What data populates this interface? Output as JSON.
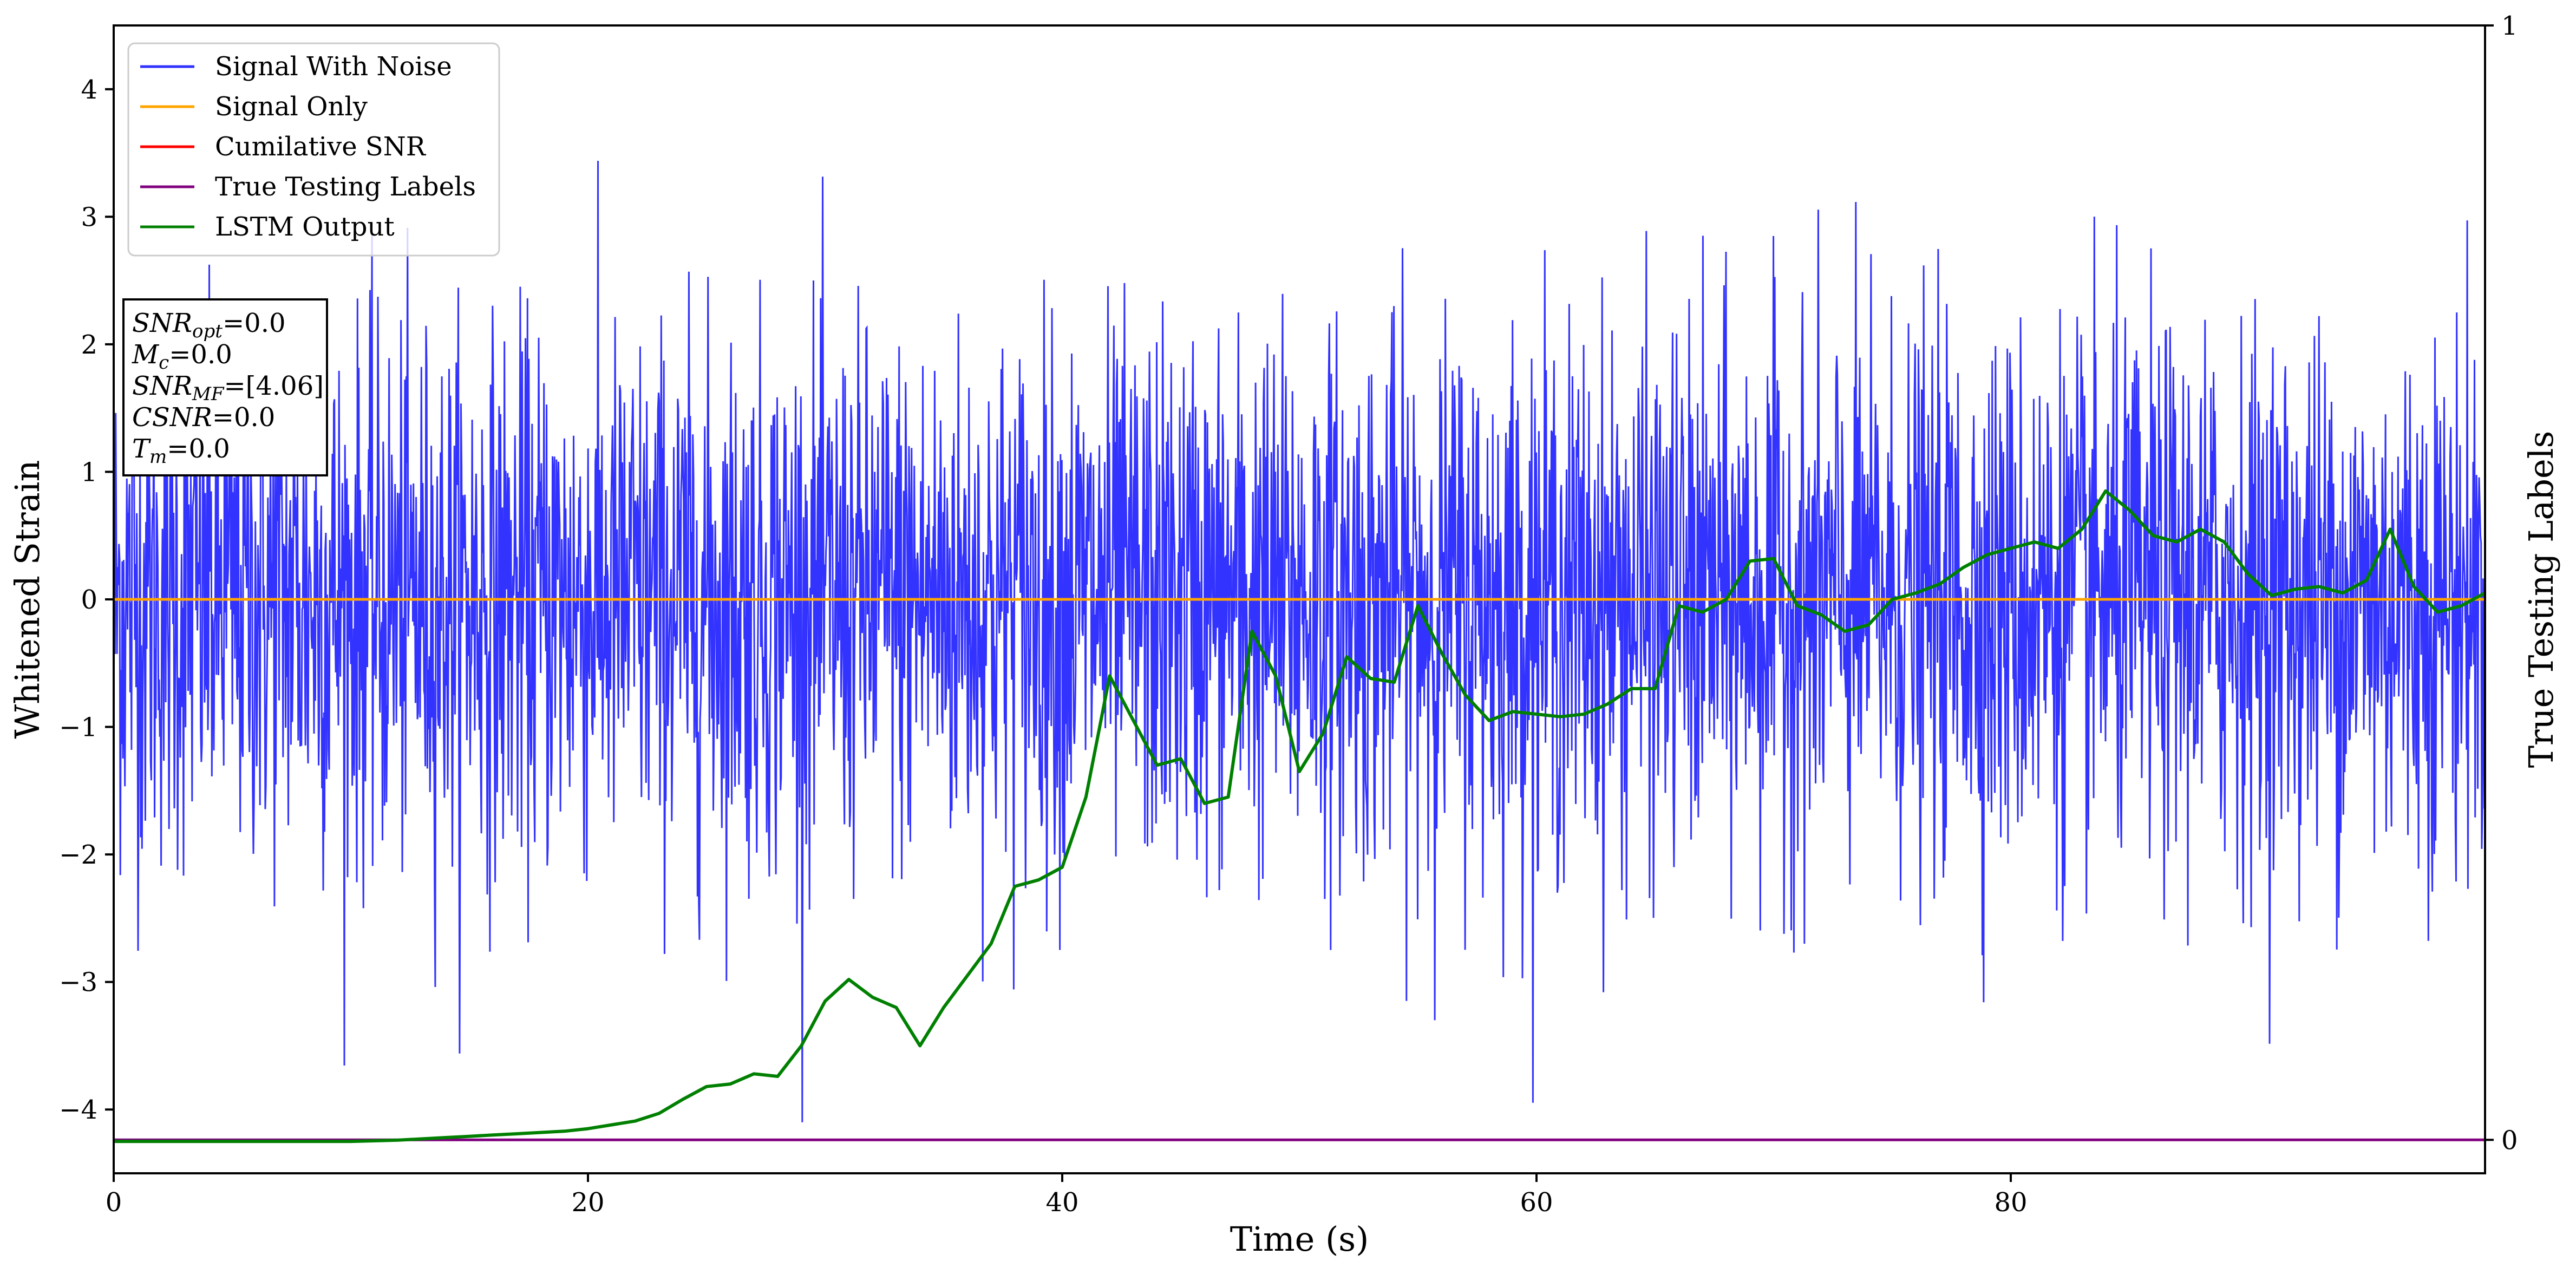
{
  "chart_data": {
    "type": "line",
    "xlabel": "Time (s)",
    "ylabel": "Whitened Strain",
    "y2label": "True Testing Labels",
    "xlim": [
      0,
      100
    ],
    "ylim": [
      -4.5,
      4.5
    ],
    "y2lim": [
      -0.03,
      1.0
    ],
    "x_ticks": [
      "0",
      "20",
      "40",
      "60",
      "80"
    ],
    "x_tick_values": [
      0,
      20,
      40,
      60,
      80
    ],
    "y_ticks": [
      "4",
      "3",
      "2",
      "1",
      "0",
      "−1",
      "−2",
      "−3",
      "−4"
    ],
    "y_tick_values": [
      4,
      3,
      2,
      1,
      0,
      -1,
      -2,
      -3,
      -4
    ],
    "y2_ticks": [
      "1",
      "0"
    ],
    "y2_tick_values": [
      1,
      0
    ],
    "grid": false,
    "legend_position": "top-left",
    "colors": {
      "noise": "#3333ff",
      "signal": "#ffa500",
      "csnr": "#ff0000",
      "labels": "#800080",
      "lstm": "#008000"
    },
    "series": [
      {
        "name": "Signal With Noise",
        "color": "#3333ff",
        "description_values": "dense noise, roughly within [-4.1, 3.9]"
      },
      {
        "name": "Signal Only",
        "color": "#ffa500",
        "x": [
          0,
          100
        ],
        "y": [
          0,
          0
        ]
      },
      {
        "name": "Cumilative SNR",
        "color": "#ff0000"
      },
      {
        "name": "True Testing Labels",
        "color": "#800080",
        "x": [
          0,
          100
        ],
        "y2": [
          0,
          0
        ]
      },
      {
        "name": "LSTM Output",
        "color": "#008000",
        "x": [
          0,
          5,
          10,
          12,
          14,
          15,
          16,
          17,
          18,
          19,
          20,
          21,
          22,
          23,
          24,
          25,
          26,
          27,
          28,
          29,
          30,
          31,
          32,
          33,
          34,
          35,
          36,
          37,
          38,
          39,
          40,
          41,
          42,
          43,
          44,
          45,
          46,
          47,
          48,
          49,
          50,
          51,
          52,
          53,
          54,
          55,
          56,
          57,
          58,
          59,
          60,
          61,
          62,
          63,
          64,
          65,
          66,
          67,
          68,
          69,
          70,
          71,
          72,
          73,
          74,
          75,
          76,
          77,
          78,
          79,
          80,
          81,
          82,
          83,
          84,
          85,
          86,
          87,
          88,
          89,
          90,
          91,
          92,
          93,
          94,
          95,
          96,
          97,
          98,
          99,
          100
        ],
        "y": [
          -4.25,
          -4.25,
          -4.25,
          -4.24,
          -4.22,
          -4.21,
          -4.2,
          -4.19,
          -4.18,
          -4.17,
          -4.15,
          -4.12,
          -4.09,
          -4.03,
          -3.92,
          -3.82,
          -3.8,
          -3.72,
          -3.74,
          -3.5,
          -3.15,
          -2.98,
          -3.12,
          -3.2,
          -3.5,
          -3.2,
          -2.95,
          -2.7,
          -2.25,
          -2.2,
          -2.1,
          -1.55,
          -0.6,
          -0.95,
          -1.3,
          -1.25,
          -1.6,
          -1.55,
          -0.25,
          -0.6,
          -1.35,
          -1.05,
          -0.45,
          -0.62,
          -0.65,
          -0.05,
          -0.42,
          -0.75,
          -0.95,
          -0.88,
          -0.9,
          -0.92,
          -0.9,
          -0.82,
          -0.7,
          -0.7,
          -0.05,
          -0.1,
          0.0,
          0.3,
          0.32,
          -0.05,
          -0.12,
          -0.25,
          -0.2,
          0.0,
          0.05,
          0.12,
          0.25,
          0.35,
          0.4,
          0.45,
          0.4,
          0.55,
          0.85,
          0.7,
          0.5,
          0.45,
          0.55,
          0.45,
          0.2,
          0.03,
          0.08,
          0.1,
          0.05,
          0.15,
          0.55,
          0.1,
          -0.1,
          -0.05,
          0.05
        ]
      }
    ],
    "annotation_lines": [
      {
        "base": "SNR",
        "sub": "opt",
        "suffix": "=0.0"
      },
      {
        "base": "M",
        "sub": "c",
        "suffix": "=0.0"
      },
      {
        "base": "SNR",
        "sub": "MF",
        "suffix": "=[4.06]"
      },
      {
        "base": "CSNR",
        "sub": "",
        "suffix": "=0.0"
      },
      {
        "base": "T",
        "sub": "m",
        "suffix": "=0.0"
      }
    ]
  }
}
